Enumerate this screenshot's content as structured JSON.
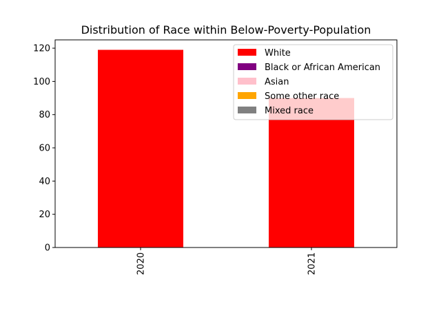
{
  "chart_data": {
    "type": "bar",
    "stacked": true,
    "title": "Distribution of Race within Below-Poverty-Population",
    "xlabel": "",
    "ylabel": "",
    "categories": [
      "2020",
      "2021"
    ],
    "ylim": [
      0,
      125
    ],
    "yticks": [
      0,
      20,
      40,
      60,
      80,
      100,
      120
    ],
    "grid": false,
    "legend_position": "top-right",
    "series": [
      {
        "name": "White",
        "color": "#ff0000",
        "values": [
          119,
          90
        ]
      },
      {
        "name": "Black or African American",
        "color": "#800080",
        "values": [
          0,
          0
        ]
      },
      {
        "name": "Asian",
        "color": "#ffc0cb",
        "values": [
          0,
          0
        ]
      },
      {
        "name": "Some other race",
        "color": "#ffa500",
        "values": [
          0,
          0
        ]
      },
      {
        "name": "Mixed race",
        "color": "#808080",
        "values": [
          0,
          0
        ]
      }
    ]
  }
}
